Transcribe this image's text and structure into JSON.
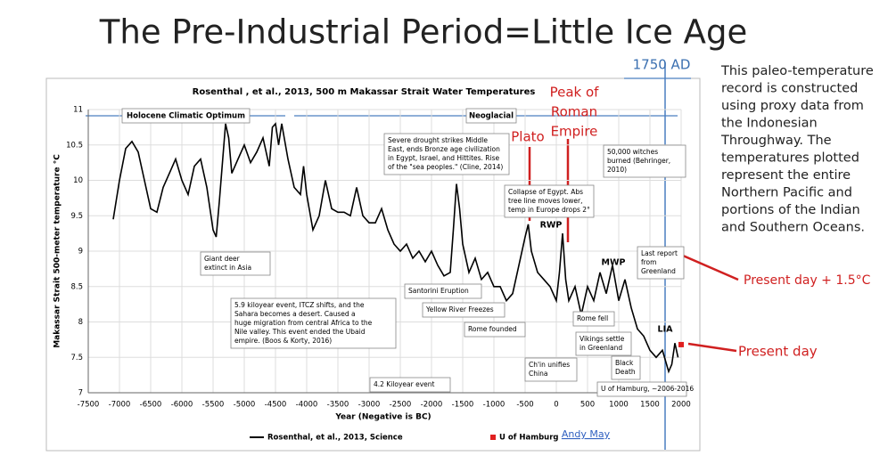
{
  "slide_title": "The Pre-Industrial Period=Little Ice Age",
  "side_text": [
    "This paleo-temperature",
    "record is constructed",
    "using proxy data from",
    "the Indonesian",
    "Throughway. The",
    "temperatures plotted",
    "represent the entire",
    "Northern Pacific and",
    "portions of the Indian",
    "and Southern Oceans."
  ],
  "chart_data": {
    "type": "line",
    "title": "Rosenthal , et al., 2013, 500 m Makassar Strait Water Temperatures",
    "x_label": "Year (Negative is BC)",
    "y_label": "Makassar Strait 500-meter temperature °C",
    "credit": "Andy May",
    "xlim": [
      -7500,
      2000
    ],
    "ylim": [
      7,
      11
    ],
    "xticks": [
      -7500,
      -7000,
      -6500,
      -6000,
      -5500,
      -5000,
      -4500,
      -4000,
      -3500,
      -3000,
      -2500,
      -2000,
      -1500,
      -1000,
      -500,
      0,
      500,
      1000,
      1500,
      2000
    ],
    "yticks": [
      7,
      7.5,
      8,
      8.5,
      9,
      9.5,
      10,
      10.5,
      11
    ],
    "grid": true,
    "series": [
      {
        "name": "Rosenthal, et al., 2013, Science",
        "color": "#000000",
        "x": [
          -7100,
          -7000,
          -6900,
          -6800,
          -6700,
          -6600,
          -6500,
          -6400,
          -6300,
          -6200,
          -6100,
          -6000,
          -5900,
          -5800,
          -5700,
          -5600,
          -5500,
          -5450,
          -5400,
          -5300,
          -5250,
          -5200,
          -5100,
          -5000,
          -4900,
          -4800,
          -4700,
          -4600,
          -4550,
          -4500,
          -4450,
          -4400,
          -4300,
          -4200,
          -4100,
          -4050,
          -4000,
          -3900,
          -3800,
          -3700,
          -3600,
          -3500,
          -3400,
          -3300,
          -3200,
          -3100,
          -3000,
          -2900,
          -2800,
          -2700,
          -2600,
          -2500,
          -2400,
          -2300,
          -2200,
          -2100,
          -2000,
          -1900,
          -1800,
          -1700,
          -1650,
          -1600,
          -1550,
          -1500,
          -1400,
          -1300,
          -1200,
          -1100,
          -1000,
          -900,
          -800,
          -700,
          -600,
          -500,
          -450,
          -400,
          -300,
          -200,
          -100,
          0,
          50,
          100,
          150,
          200,
          300,
          400,
          500,
          600,
          700,
          800,
          900,
          1000,
          1100,
          1200,
          1300,
          1400,
          1500,
          1600,
          1700,
          1800,
          1850,
          1900,
          1950
        ],
        "values": [
          9.45,
          10.0,
          10.45,
          10.55,
          10.4,
          10.0,
          9.6,
          9.55,
          9.9,
          10.1,
          10.3,
          10.0,
          9.8,
          10.2,
          10.3,
          9.9,
          9.3,
          9.2,
          9.7,
          10.8,
          10.6,
          10.1,
          10.3,
          10.5,
          10.25,
          10.4,
          10.6,
          10.2,
          10.75,
          10.8,
          10.5,
          10.8,
          10.3,
          9.9,
          9.8,
          10.2,
          9.8,
          9.3,
          9.5,
          10.0,
          9.6,
          9.55,
          9.55,
          9.5,
          9.9,
          9.5,
          9.4,
          9.4,
          9.6,
          9.3,
          9.1,
          9.0,
          9.1,
          8.9,
          9.0,
          8.85,
          9.0,
          8.8,
          8.65,
          8.7,
          9.3,
          9.95,
          9.6,
          9.1,
          8.7,
          8.9,
          8.6,
          8.7,
          8.5,
          8.5,
          8.3,
          8.4,
          8.8,
          9.2,
          9.38,
          9.0,
          8.7,
          8.6,
          8.5,
          8.3,
          8.7,
          9.25,
          8.6,
          8.3,
          8.5,
          8.1,
          8.5,
          8.3,
          8.7,
          8.4,
          8.8,
          8.3,
          8.6,
          8.2,
          7.9,
          7.8,
          7.6,
          7.5,
          7.6,
          7.3,
          7.4,
          7.7,
          7.5
        ]
      },
      {
        "name": "U of Hamburg",
        "color": "#e02020",
        "x": [
          2000
        ],
        "values": [
          7.68
        ]
      }
    ],
    "period_labels": [
      "Holocene Climatic Optimum",
      "Neoglacial"
    ],
    "annotations": [
      [
        "Severe drought strikes Middle",
        "East, ends Bronze age civilization",
        "in Egypt, Israel, and Hittites. Rise",
        "of the \"sea peoples.\" (Cline, 2014)"
      ],
      [
        "Collapse of Egypt. Abs",
        "tree line moves lower,",
        "temp in Europe drops 2°"
      ],
      [
        "50,000 witches",
        "burned (Behringer,",
        "2010)"
      ],
      [
        "Giant deer",
        "extinct in Asia"
      ],
      [
        "5.9 kiloyear event, ITCZ shifts, and the",
        "Sahara becomes a desert.  Caused a",
        "huge migration from central Africa to the",
        "Nile valley.  This event ended the Ubaid",
        "empire. (Boos & Korty, 2016)"
      ],
      [
        "Santorini Eruption"
      ],
      [
        "Yellow River Freezes"
      ],
      [
        "Rome founded"
      ],
      [
        "Rome fell"
      ],
      [
        "Vikings settle",
        "in Greenland"
      ],
      [
        "Ch'in unifies",
        "China"
      ],
      [
        "Black",
        "Death"
      ],
      [
        "Last report",
        "from",
        "Greenland"
      ],
      [
        "4.2 Kiloyear event"
      ],
      [
        "U of Hamburg, ~2006-2016"
      ]
    ],
    "period_names": [
      "RWP",
      "MWP",
      "LIA"
    ],
    "red_labels": [
      "Plato",
      "Peak of",
      "Roman",
      "Empire",
      "Present day + 1.5°C",
      "Present day"
    ],
    "marker_label": "1750 AD"
  }
}
